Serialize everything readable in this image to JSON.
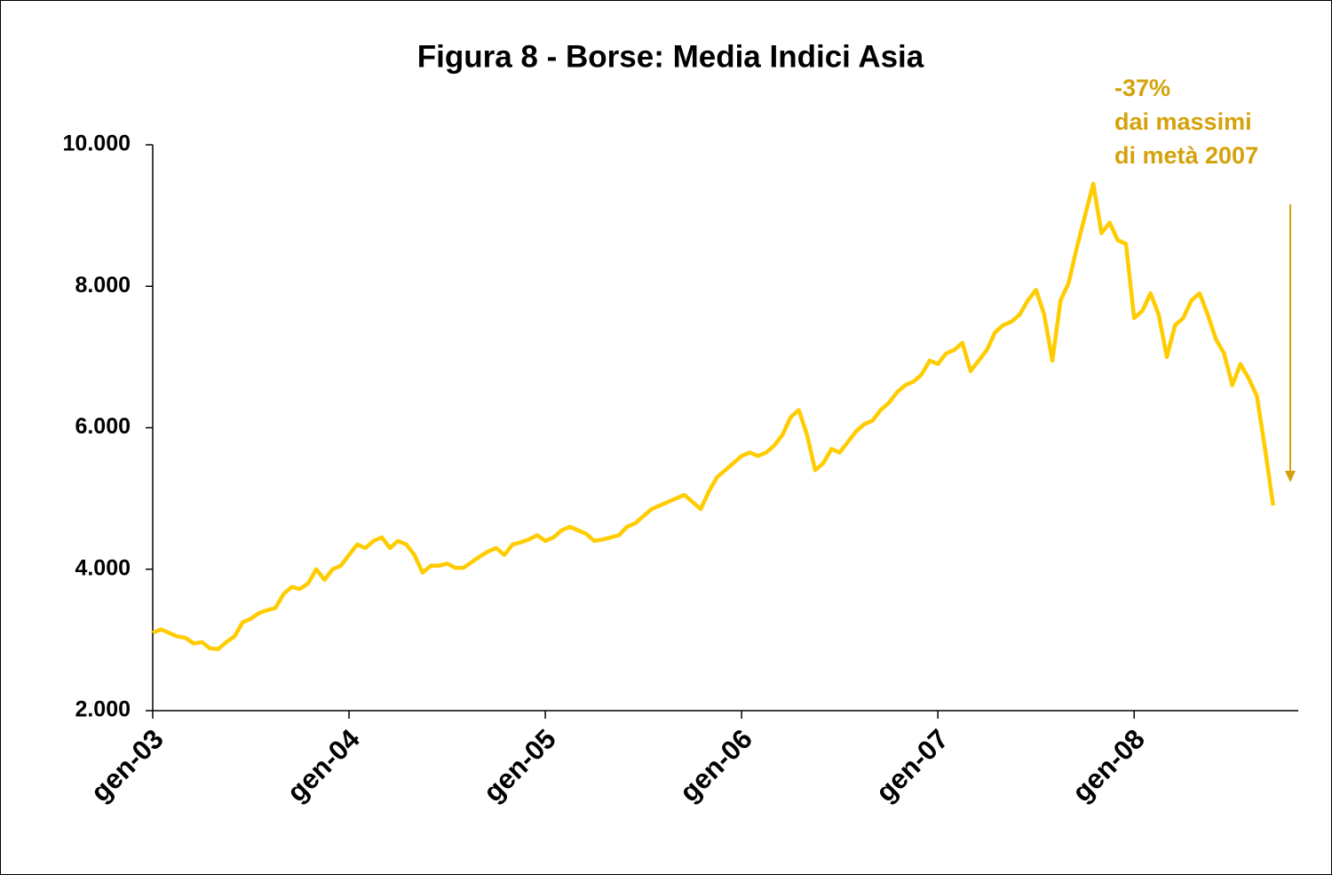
{
  "chart_data": {
    "type": "line",
    "title": "Figura 8 - Borse: Media Indici Asia",
    "annotation": [
      "-37%",
      "dai massimi",
      "di metà 2007"
    ],
    "annotation_color": "#d4a20a",
    "categories": [
      "gen-03",
      null,
      null,
      null,
      null,
      null,
      null,
      null,
      null,
      null,
      null,
      null,
      null,
      null,
      null,
      null,
      null,
      null,
      null,
      null,
      null,
      null,
      null,
      null,
      "gen-04",
      null,
      null,
      null,
      null,
      null,
      null,
      null,
      null,
      null,
      null,
      null,
      null,
      null,
      null,
      null,
      null,
      null,
      null,
      null,
      null,
      null,
      null,
      null,
      "gen-05",
      null,
      null,
      null,
      null,
      null,
      null,
      null,
      null,
      null,
      null,
      null,
      null,
      null,
      null,
      null,
      null,
      null,
      null,
      null,
      null,
      null,
      null,
      null,
      "gen-06",
      null,
      null,
      null,
      null,
      null,
      null,
      null,
      null,
      null,
      null,
      null,
      null,
      null,
      null,
      null,
      null,
      null,
      null,
      null,
      null,
      null,
      null,
      null,
      "gen-07",
      null,
      null,
      null,
      null,
      null,
      null,
      null,
      null,
      null,
      null,
      null,
      null,
      null,
      null,
      null,
      null,
      null,
      null,
      null,
      null,
      null,
      null,
      null,
      "gen-08",
      null,
      null,
      null,
      null,
      null,
      null,
      null,
      null,
      null,
      null,
      null,
      null,
      null,
      null,
      null,
      null,
      null
    ],
    "series": [
      {
        "name": null,
        "color": "#ffcc00",
        "values": [
          3100,
          3150,
          3100,
          3050,
          3030,
          2950,
          2970,
          2880,
          2870,
          2970,
          3050,
          3250,
          3300,
          3380,
          3420,
          3450,
          3650,
          3750,
          3720,
          3800,
          4000,
          3850,
          4000,
          4050,
          4200,
          4350,
          4300,
          4400,
          4450,
          4300,
          4400,
          4350,
          4200,
          3950,
          4050,
          4050,
          4080,
          4020,
          4020,
          4100,
          4180,
          4250,
          4300,
          4200,
          4350,
          4380,
          4420,
          4480,
          4400,
          4450,
          4550,
          4600,
          4550,
          4500,
          4400,
          4420,
          4450,
          4480,
          4600,
          4650,
          4750,
          4850,
          4900,
          4950,
          5000,
          5050,
          4950,
          4850,
          5100,
          5300,
          5400,
          5500,
          5600,
          5650,
          5600,
          5650,
          5750,
          5900,
          6150,
          6250,
          5900,
          5400,
          5500,
          5700,
          5650,
          5800,
          5950,
          6050,
          6100,
          6250,
          6350,
          6500,
          6600,
          6650,
          6750,
          6950,
          6900,
          7050,
          7100,
          7200,
          6800,
          6950,
          7100,
          7350,
          7450,
          7500,
          7600,
          7800,
          7950,
          7600,
          6950,
          7800,
          8050,
          8550,
          9000,
          9450,
          8750,
          8900,
          8650,
          8600,
          7550,
          7650,
          7900,
          7600,
          7000,
          7450,
          7550,
          7800,
          7900,
          7600,
          7250,
          7050,
          6600,
          6900,
          6700,
          6450,
          5700,
          4900
        ]
      }
    ],
    "ylim": [
      2000,
      10000
    ],
    "yticks": [
      {
        "value": 2000,
        "label": "2.000"
      },
      {
        "value": 4000,
        "label": "4.000"
      },
      {
        "value": 6000,
        "label": "6.000"
      },
      {
        "value": 8000,
        "label": "8.000"
      },
      {
        "value": 10000,
        "label": "10.000"
      }
    ],
    "grid": false
  }
}
